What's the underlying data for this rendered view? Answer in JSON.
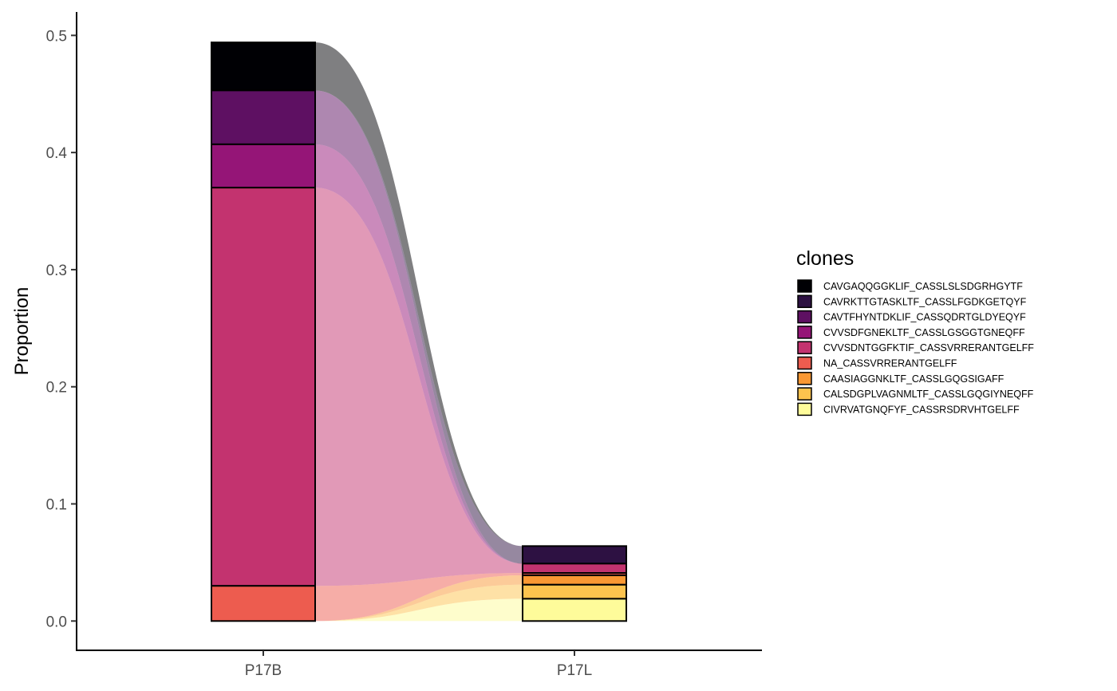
{
  "chart_data": {
    "type": "bar",
    "subtype": "stacked-alluvial",
    "title": "",
    "xlabel": "",
    "ylabel": "Proportion",
    "ylim": [
      -0.025,
      0.52
    ],
    "yticks": [
      0.0,
      0.1,
      0.2,
      0.3,
      0.4,
      0.5
    ],
    "ytick_labels": [
      "0.0",
      "0.1",
      "0.2",
      "0.3",
      "0.4",
      "0.5"
    ],
    "categories": [
      "P17B",
      "P17L"
    ],
    "grid": false,
    "legend": {
      "title": "clones",
      "position": "right"
    },
    "series": [
      {
        "name": "CAVGAQQGGKLIF_CASSLSLSDGRHGYTF",
        "color": "#000004",
        "values": [
          0.041,
          0.0
        ]
      },
      {
        "name": "CAVRKTTGTASKLTF_CASSLFGDKGETQYF",
        "color": "#2d1142",
        "values": [
          0.0,
          0.015
        ]
      },
      {
        "name": "CAVTFHYNTDKLIF_CASSQDRTGLDYEQYF",
        "color": "#5e1062",
        "values": [
          0.046,
          0.0
        ]
      },
      {
        "name": "CVVSDFGNEKLTF_CASSLGSGGTGNEQFF",
        "color": "#951577",
        "values": [
          0.037,
          0.0
        ]
      },
      {
        "name": "CVVSDNTGGFKTIF_CASSVRRERANTGELFF",
        "color": "#c3336f",
        "values": [
          0.34,
          0.008
        ]
      },
      {
        "name": "NA_CASSVRRERANTGELFF",
        "color": "#ed5c4f",
        "values": [
          0.03,
          0.002
        ]
      },
      {
        "name": "CAASIAGGNKLTF_CASSLGQGSIGAFF",
        "color": "#fa9833",
        "values": [
          0.0,
          0.008
        ]
      },
      {
        "name": "CALSDGPLVAGNMLTF_CASSLGQGIYNEQFF",
        "color": "#fdc34e",
        "values": [
          0.0,
          0.012
        ]
      },
      {
        "name": "CIVRVATGNQFYF_CASSRSDRVHTGELFF",
        "color": "#fefb9a",
        "values": [
          0.0,
          0.019
        ]
      }
    ]
  }
}
